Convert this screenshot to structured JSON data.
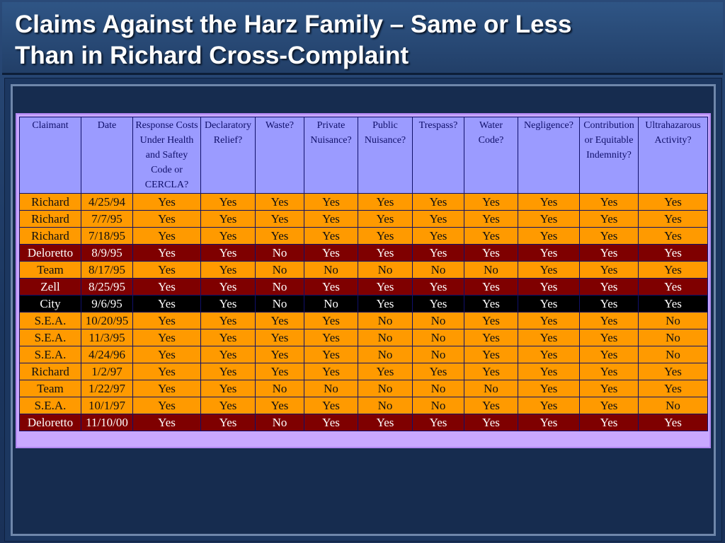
{
  "title": {
    "line1": "Claims Against the Harz Family – Same or Less",
    "line2": "Than in Richard Cross-Complaint"
  },
  "colors": {
    "orange_row": "#ff9a00",
    "maroon_row": "#7f0000",
    "black_row": "#000000",
    "header_bg": "#9b9bff"
  },
  "table": {
    "headers": [
      "Claimant",
      "Date",
      "Response Costs Under Health and Saftey Code or CERCLA?",
      "Declaratory Relief?",
      "Waste?",
      "Private Nuisance?",
      "Public Nuisance?",
      "Trespass?",
      "Water Code?",
      "Negligence?",
      "Contribution or Equitable Indemnity?",
      "Ultrahazarous Activity?"
    ],
    "rows": [
      {
        "style": "orange",
        "cells": [
          "Richard",
          "4/25/94",
          "Yes",
          "Yes",
          "Yes",
          "Yes",
          "Yes",
          "Yes",
          "Yes",
          "Yes",
          "Yes",
          "Yes"
        ]
      },
      {
        "style": "orange",
        "cells": [
          "Richard",
          "7/7/95",
          "Yes",
          "Yes",
          "Yes",
          "Yes",
          "Yes",
          "Yes",
          "Yes",
          "Yes",
          "Yes",
          "Yes"
        ]
      },
      {
        "style": "orange",
        "cells": [
          "Richard",
          "7/18/95",
          "Yes",
          "Yes",
          "Yes",
          "Yes",
          "Yes",
          "Yes",
          "Yes",
          "Yes",
          "Yes",
          "Yes"
        ]
      },
      {
        "style": "maroon",
        "cells": [
          "Deloretto",
          "8/9/95",
          "Yes",
          "Yes",
          "No",
          "Yes",
          "Yes",
          "Yes",
          "Yes",
          "Yes",
          "Yes",
          "Yes"
        ]
      },
      {
        "style": "orange",
        "cells": [
          "Team",
          "8/17/95",
          "Yes",
          "Yes",
          "No",
          "No",
          "No",
          "No",
          "No",
          "Yes",
          "Yes",
          "Yes"
        ]
      },
      {
        "style": "maroon",
        "cells": [
          "Zell",
          "8/25/95",
          "Yes",
          "Yes",
          "No",
          "Yes",
          "Yes",
          "Yes",
          "Yes",
          "Yes",
          "Yes",
          "Yes"
        ]
      },
      {
        "style": "black",
        "cells": [
          "City",
          "9/6/95",
          "Yes",
          "Yes",
          "No",
          "No",
          "Yes",
          "Yes",
          "Yes",
          "Yes",
          "Yes",
          "Yes"
        ]
      },
      {
        "style": "orange",
        "cells": [
          "S.E.A.",
          "10/20/95",
          "Yes",
          "Yes",
          "Yes",
          "Yes",
          "No",
          "No",
          "Yes",
          "Yes",
          "Yes",
          "No"
        ]
      },
      {
        "style": "orange",
        "cells": [
          "S.E.A.",
          "11/3/95",
          "Yes",
          "Yes",
          "Yes",
          "Yes",
          "No",
          "No",
          "Yes",
          "Yes",
          "Yes",
          "No"
        ]
      },
      {
        "style": "orange",
        "cells": [
          "S.E.A.",
          "4/24/96",
          "Yes",
          "Yes",
          "Yes",
          "Yes",
          "No",
          "No",
          "Yes",
          "Yes",
          "Yes",
          "No"
        ]
      },
      {
        "style": "orange",
        "cells": [
          "Richard",
          "1/2/97",
          "Yes",
          "Yes",
          "Yes",
          "Yes",
          "Yes",
          "Yes",
          "Yes",
          "Yes",
          "Yes",
          "Yes"
        ]
      },
      {
        "style": "orange",
        "cells": [
          "Team",
          "1/22/97",
          "Yes",
          "Yes",
          "No",
          "No",
          "No",
          "No",
          "No",
          "Yes",
          "Yes",
          "Yes"
        ]
      },
      {
        "style": "orange",
        "cells": [
          "S.E.A.",
          "10/1/97",
          "Yes",
          "Yes",
          "Yes",
          "Yes",
          "No",
          "No",
          "Yes",
          "Yes",
          "Yes",
          "No"
        ]
      },
      {
        "style": "maroon",
        "cells": [
          "Deloretto",
          "11/10/00",
          "Yes",
          "Yes",
          "No",
          "Yes",
          "Yes",
          "Yes",
          "Yes",
          "Yes",
          "Yes",
          "Yes"
        ]
      }
    ]
  }
}
